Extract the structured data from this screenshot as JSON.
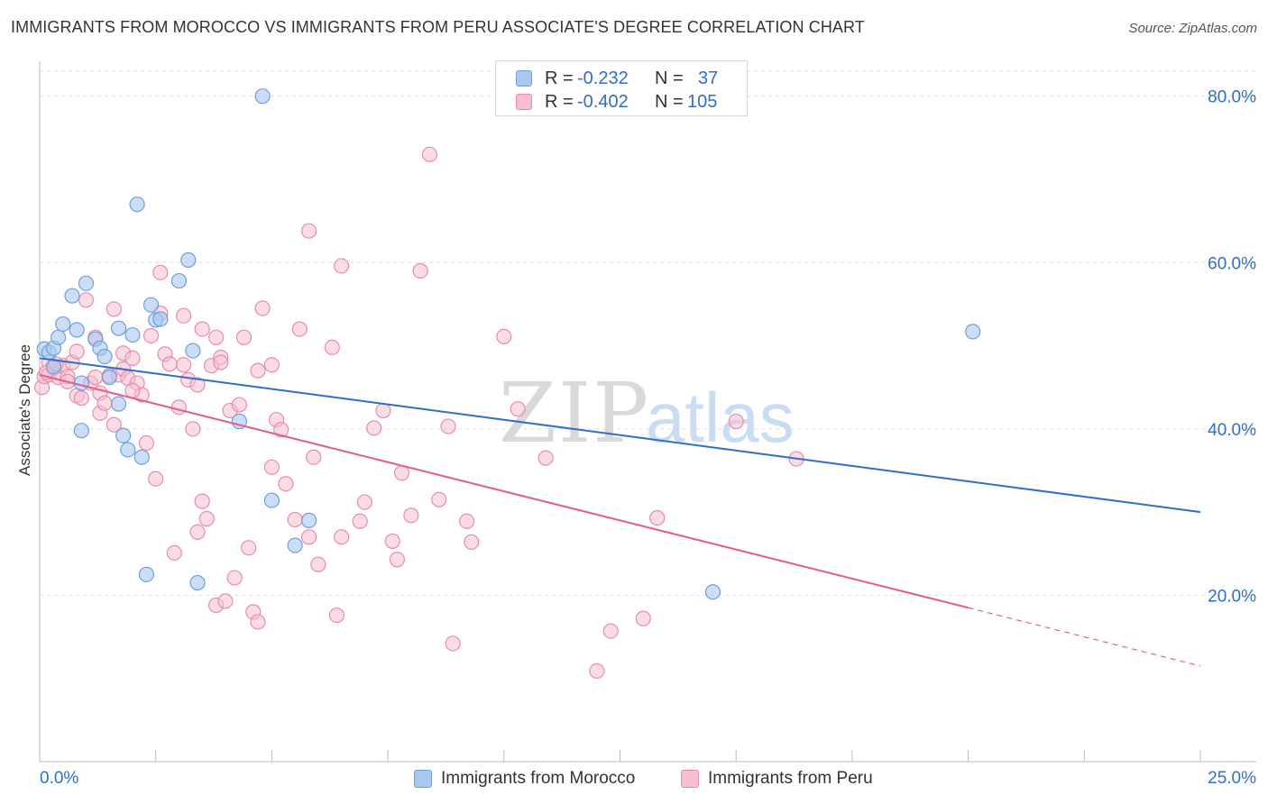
{
  "title": "IMMIGRANTS FROM MOROCCO VS IMMIGRANTS FROM PERU ASSOCIATE'S DEGREE CORRELATION CHART",
  "source": "Source: ZipAtlas.com",
  "watermark": {
    "zip": "ZIP",
    "atlas": "atlas"
  },
  "colors": {
    "morocco_fill": "#a9c8ee",
    "morocco_stroke": "#6f9fd9",
    "morocco_line": "#2f6ec9",
    "peru_fill": "#f6bfd0",
    "peru_stroke": "#e98cab",
    "peru_line": "#e0608b",
    "value_text": "#2f6ec9",
    "grid": "#dddddd"
  },
  "legend_top": {
    "rows": [
      {
        "r_label": "R =",
        "r_value": "-0.232",
        "n_label": "N =",
        "n_value": "37"
      },
      {
        "r_label": "R =",
        "r_value": "-0.402",
        "n_label": "N =",
        "n_value": "105"
      }
    ]
  },
  "legend_bottom": {
    "morocco": "Immigrants from Morocco",
    "peru": "Immigrants from Peru"
  },
  "chart_data": {
    "type": "scatter",
    "title": "IMMIGRANTS FROM MOROCCO VS IMMIGRANTS FROM PERU ASSOCIATE'S DEGREE CORRELATION CHART",
    "xlabel": "",
    "ylabel": "Associate's Degree",
    "xlim": [
      0,
      25
    ],
    "ylim": [
      0,
      83
    ],
    "x_tick_labels": [
      "0.0%",
      "25.0%"
    ],
    "y_ticks": [
      20,
      40,
      60,
      80
    ],
    "y_tick_labels": [
      "20.0%",
      "40.0%",
      "60.0%",
      "80.0%"
    ],
    "grid": true,
    "legend_position": "top-center",
    "series": [
      {
        "name": "Immigrants from Morocco",
        "r": -0.232,
        "n": 37,
        "trend": {
          "x": [
            0,
            25
          ],
          "y": [
            48.5,
            30.0
          ]
        },
        "points": [
          [
            0.1,
            49.6
          ],
          [
            0.2,
            49.2
          ],
          [
            0.3,
            49.7
          ],
          [
            0.4,
            51.0
          ],
          [
            0.5,
            52.6
          ],
          [
            0.7,
            56.0
          ],
          [
            0.8,
            51.9
          ],
          [
            0.9,
            45.5
          ],
          [
            1.0,
            57.5
          ],
          [
            1.2,
            50.8
          ],
          [
            1.3,
            49.7
          ],
          [
            1.4,
            48.7
          ],
          [
            1.5,
            46.2
          ],
          [
            1.7,
            52.1
          ],
          [
            1.7,
            43.0
          ],
          [
            1.8,
            39.2
          ],
          [
            1.9,
            37.5
          ],
          [
            2.0,
            51.3
          ],
          [
            2.1,
            67.0
          ],
          [
            2.2,
            36.6
          ],
          [
            2.3,
            22.5
          ],
          [
            2.4,
            54.9
          ],
          [
            2.5,
            53.1
          ],
          [
            2.6,
            53.2
          ],
          [
            3.0,
            57.8
          ],
          [
            3.2,
            60.3
          ],
          [
            3.3,
            49.4
          ],
          [
            3.4,
            21.5
          ],
          [
            4.3,
            40.9
          ],
          [
            4.8,
            80.0
          ],
          [
            5.0,
            31.4
          ],
          [
            5.5,
            26.0
          ],
          [
            5.8,
            29.0
          ],
          [
            20.1,
            51.7
          ],
          [
            14.5,
            20.4
          ],
          [
            0.3,
            47.5
          ],
          [
            0.9,
            39.8
          ]
        ]
      },
      {
        "name": "Immigrants from Peru",
        "r": -0.402,
        "n": 105,
        "trend": {
          "x": [
            0,
            20,
            25
          ],
          "y": [
            46.5,
            18.5,
            11.5
          ],
          "dashed_from_x": 20
        },
        "points": [
          [
            0.05,
            45.0
          ],
          [
            0.1,
            46.3
          ],
          [
            0.2,
            46.5
          ],
          [
            0.2,
            48.0
          ],
          [
            0.3,
            47.3
          ],
          [
            0.4,
            46.2
          ],
          [
            0.5,
            47.6
          ],
          [
            0.6,
            46.3
          ],
          [
            0.6,
            45.7
          ],
          [
            0.7,
            48.0
          ],
          [
            0.8,
            49.3
          ],
          [
            0.8,
            44.0
          ],
          [
            0.9,
            43.7
          ],
          [
            1.0,
            55.5
          ],
          [
            1.1,
            45.5
          ],
          [
            1.2,
            51.0
          ],
          [
            1.3,
            44.3
          ],
          [
            1.3,
            41.9
          ],
          [
            1.4,
            43.1
          ],
          [
            1.5,
            46.4
          ],
          [
            1.6,
            54.4
          ],
          [
            1.7,
            46.5
          ],
          [
            1.8,
            47.2
          ],
          [
            1.8,
            49.1
          ],
          [
            1.9,
            46.1
          ],
          [
            2.0,
            48.5
          ],
          [
            2.1,
            45.5
          ],
          [
            2.2,
            44.1
          ],
          [
            2.3,
            38.3
          ],
          [
            2.4,
            51.2
          ],
          [
            2.5,
            34.0
          ],
          [
            2.6,
            58.8
          ],
          [
            2.6,
            53.9
          ],
          [
            2.7,
            49.0
          ],
          [
            2.8,
            47.8
          ],
          [
            2.9,
            25.1
          ],
          [
            3.0,
            42.6
          ],
          [
            3.1,
            53.6
          ],
          [
            3.1,
            47.7
          ],
          [
            3.2,
            45.9
          ],
          [
            3.3,
            40.0
          ],
          [
            3.4,
            45.3
          ],
          [
            3.4,
            27.6
          ],
          [
            3.5,
            52.0
          ],
          [
            3.5,
            31.3
          ],
          [
            3.6,
            29.2
          ],
          [
            3.7,
            47.6
          ],
          [
            3.8,
            51.0
          ],
          [
            3.8,
            18.8
          ],
          [
            3.9,
            48.6
          ],
          [
            4.0,
            19.3
          ],
          [
            4.1,
            42.2
          ],
          [
            4.2,
            22.1
          ],
          [
            4.3,
            42.9
          ],
          [
            4.4,
            51.0
          ],
          [
            4.5,
            25.7
          ],
          [
            4.6,
            18.0
          ],
          [
            4.7,
            47.0
          ],
          [
            4.7,
            16.8
          ],
          [
            4.8,
            54.5
          ],
          [
            5.0,
            35.4
          ],
          [
            5.0,
            47.7
          ],
          [
            5.1,
            41.1
          ],
          [
            5.2,
            39.9
          ],
          [
            5.3,
            33.4
          ],
          [
            5.5,
            29.1
          ],
          [
            5.6,
            52.0
          ],
          [
            5.8,
            63.8
          ],
          [
            5.9,
            36.6
          ],
          [
            6.0,
            23.7
          ],
          [
            6.3,
            49.8
          ],
          [
            6.4,
            17.6
          ],
          [
            6.5,
            59.6
          ],
          [
            6.5,
            27.0
          ],
          [
            6.9,
            28.9
          ],
          [
            7.0,
            31.2
          ],
          [
            7.2,
            40.1
          ],
          [
            7.4,
            42.2
          ],
          [
            7.6,
            26.5
          ],
          [
            7.7,
            24.3
          ],
          [
            7.8,
            34.7
          ],
          [
            8.0,
            29.6
          ],
          [
            8.2,
            59.0
          ],
          [
            8.4,
            73.0
          ],
          [
            8.6,
            31.5
          ],
          [
            8.8,
            40.3
          ],
          [
            8.9,
            14.2
          ],
          [
            9.2,
            28.9
          ],
          [
            9.3,
            26.4
          ],
          [
            10.0,
            51.1
          ],
          [
            10.3,
            42.4
          ],
          [
            10.9,
            36.5
          ],
          [
            12.0,
            10.9
          ],
          [
            12.3,
            15.7
          ],
          [
            13.0,
            17.2
          ],
          [
            13.3,
            29.3
          ],
          [
            15.0,
            40.9
          ],
          [
            16.3,
            36.4
          ],
          [
            1.6,
            40.5
          ],
          [
            3.9,
            48.0
          ],
          [
            0.15,
            46.8
          ],
          [
            2.0,
            44.6
          ],
          [
            5.8,
            27.0
          ],
          [
            0.35,
            47.8
          ],
          [
            1.2,
            46.2
          ]
        ]
      }
    ]
  }
}
